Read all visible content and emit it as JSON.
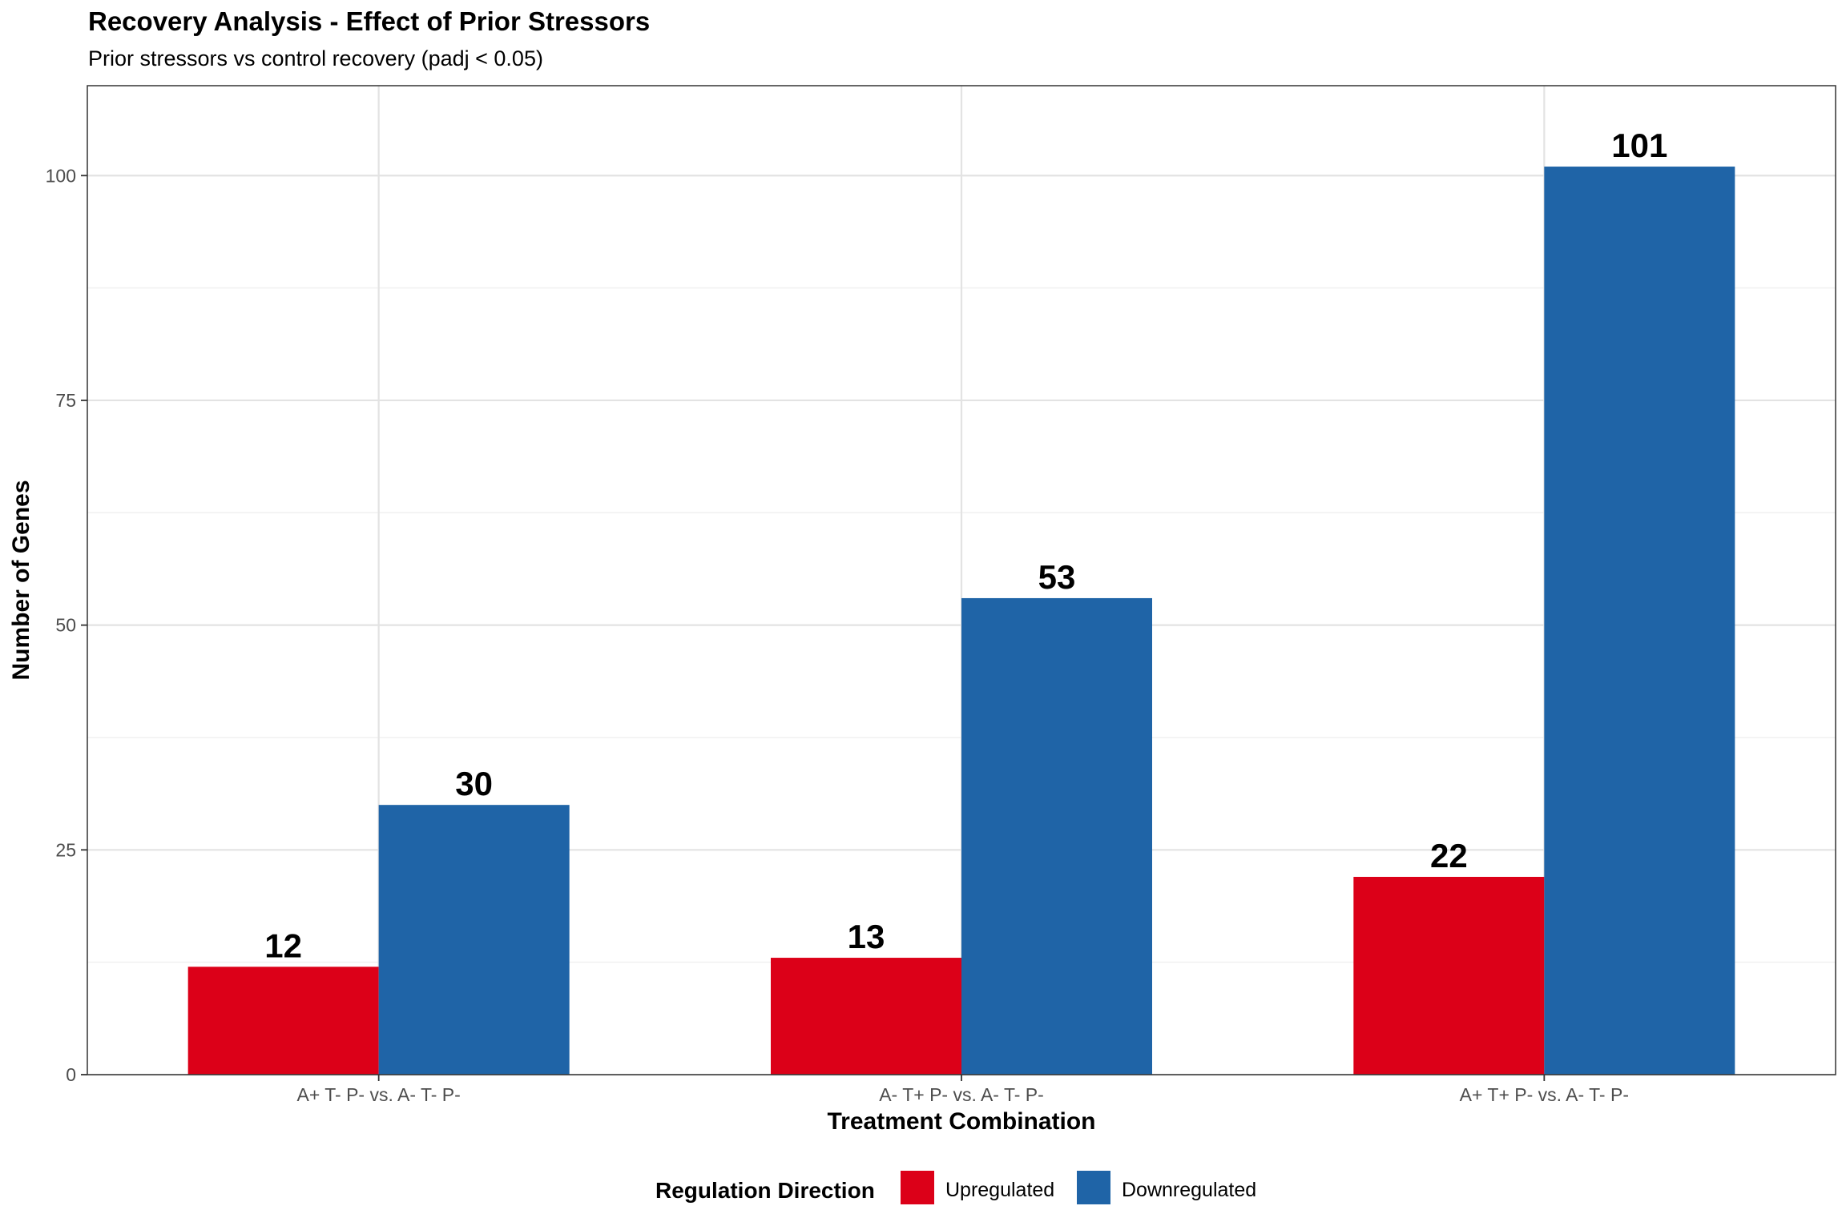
{
  "chart_data": {
    "type": "bar",
    "title": "Recovery Analysis - Effect of Prior Stressors",
    "subtitle": "Prior stressors vs control recovery (padj < 0.05)",
    "xlabel": "Treatment Combination",
    "ylabel": "Number of Genes",
    "categories": [
      "A+ T- P- vs. A- T- P-",
      "A- T+ P- vs. A- T- P-",
      "A+ T+ P- vs. A- T- P-"
    ],
    "series": [
      {
        "name": "Upregulated",
        "color": "#DC0018",
        "values": [
          12,
          13,
          22
        ]
      },
      {
        "name": "Downregulated",
        "color": "#1F64A7",
        "values": [
          30,
          53,
          101
        ]
      }
    ],
    "ylim": [
      0,
      110
    ],
    "yticks": [
      0,
      25,
      50,
      75,
      100
    ],
    "grid": true,
    "legend": {
      "title": "Regulation Direction",
      "position": "bottom"
    }
  }
}
